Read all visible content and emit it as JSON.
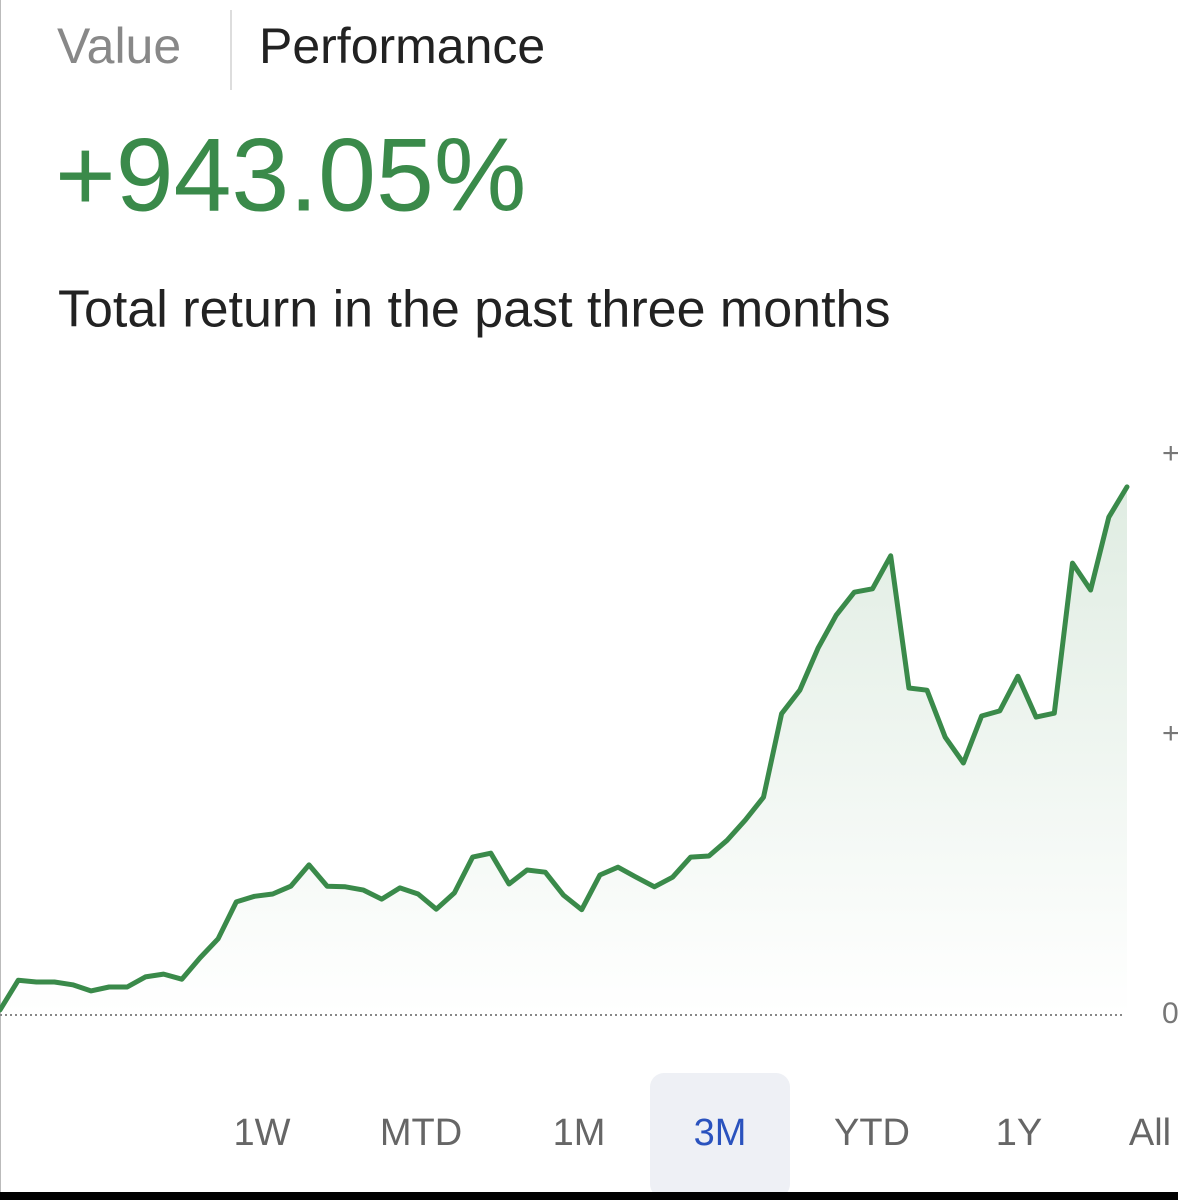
{
  "tabs": [
    "Value",
    "Performance"
  ],
  "active_tab": 1,
  "headline": "+943.05%",
  "subtitle": "Total return in the past three months",
  "chart_data": {
    "type": "area",
    "color": "#3a8a4a",
    "values": [
      9,
      62,
      59,
      59,
      54,
      43,
      50,
      50,
      68,
      73,
      64,
      102,
      136,
      202,
      212,
      216,
      230,
      268,
      230,
      229,
      223,
      207,
      227,
      216,
      189,
      218,
      282,
      289,
      234,
      259,
      255,
      214,
      188,
      250,
      264,
      246,
      229,
      246,
      282,
      284,
      312,
      348,
      389,
      538,
      580,
      655,
      714,
      755,
      761,
      820,
      584,
      580,
      496,
      450,
      534,
      543,
      605,
      532,
      539,
      807,
      759,
      889,
      943.05
    ],
    "ylim": [
      0,
      1000
    ],
    "yticks": [
      {
        "value": 0,
        "label": "0"
      },
      {
        "value": 500,
        "label": "+"
      },
      {
        "value": 1000,
        "label": "+"
      }
    ]
  },
  "ranges": [
    "1W",
    "MTD",
    "1M",
    "3M",
    "YTD",
    "1Y",
    "All"
  ],
  "selected_range": 3
}
